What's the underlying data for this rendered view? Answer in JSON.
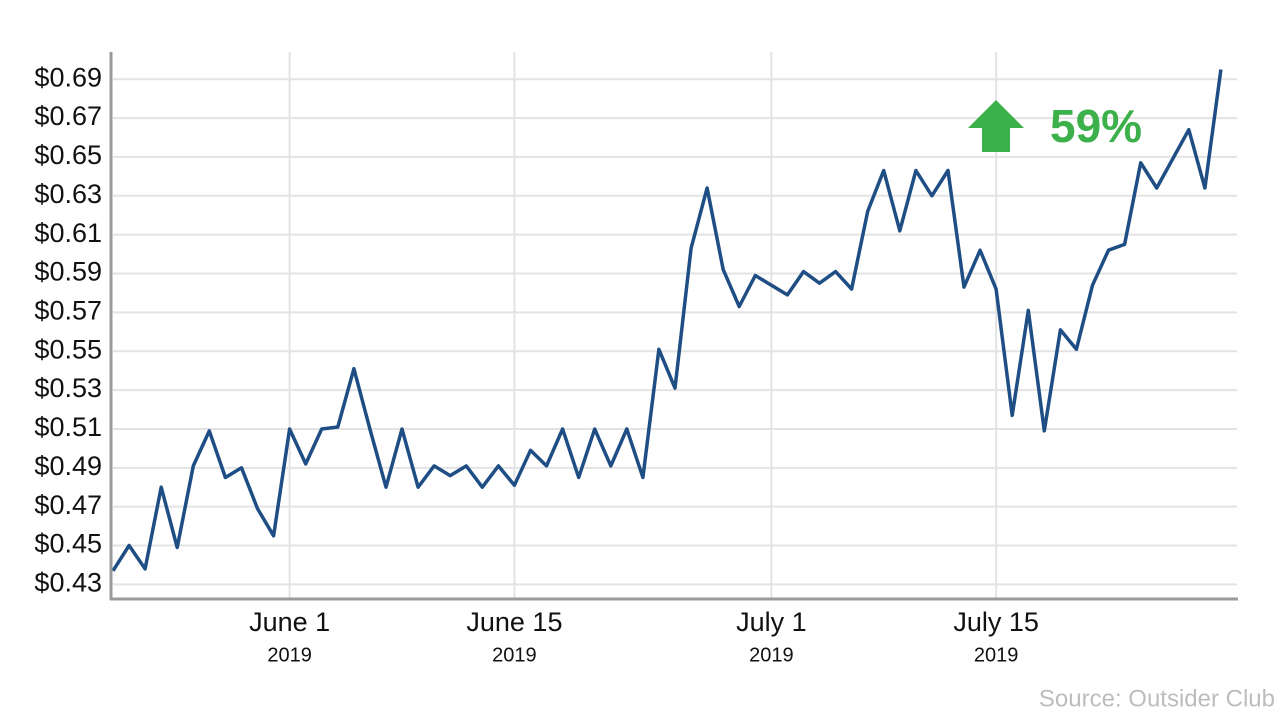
{
  "chart_data": {
    "type": "line",
    "annotation": "59%",
    "source": "Source: Outsider Club",
    "x": [
      "2019-05-21",
      "2019-05-22",
      "2019-05-23",
      "2019-05-24",
      "2019-05-25",
      "2019-05-26",
      "2019-05-27",
      "2019-05-28",
      "2019-05-29",
      "2019-05-30",
      "2019-05-31",
      "2019-06-01",
      "2019-06-02",
      "2019-06-03",
      "2019-06-04",
      "2019-06-05",
      "2019-06-06",
      "2019-06-07",
      "2019-06-08",
      "2019-06-09",
      "2019-06-10",
      "2019-06-11",
      "2019-06-12",
      "2019-06-13",
      "2019-06-14",
      "2019-06-15",
      "2019-06-16",
      "2019-06-17",
      "2019-06-18",
      "2019-06-19",
      "2019-06-20",
      "2019-06-21",
      "2019-06-22",
      "2019-06-23",
      "2019-06-24",
      "2019-06-25",
      "2019-06-26",
      "2019-06-27",
      "2019-06-28",
      "2019-06-29",
      "2019-06-30",
      "2019-07-02",
      "2019-07-03",
      "2019-07-04",
      "2019-07-05",
      "2019-07-06",
      "2019-07-07",
      "2019-07-08",
      "2019-07-09",
      "2019-07-10",
      "2019-07-11",
      "2019-07-12",
      "2019-07-13",
      "2019-07-14",
      "2019-07-15",
      "2019-07-16",
      "2019-07-17",
      "2019-07-18",
      "2019-07-19",
      "2019-07-20",
      "2019-07-21",
      "2019-07-22",
      "2019-07-23",
      "2019-07-24",
      "2019-07-25",
      "2019-07-27",
      "2019-07-28",
      "2019-07-29"
    ],
    "series": [
      {
        "color": "#1f4e85",
        "values": [
          0.437,
          0.45,
          0.438,
          0.48,
          0.449,
          0.491,
          0.509,
          0.485,
          0.49,
          0.469,
          0.455,
          0.51,
          0.492,
          0.51,
          0.511,
          0.541,
          0.51,
          0.48,
          0.51,
          0.48,
          0.491,
          0.486,
          0.491,
          0.48,
          0.491,
          0.481,
          0.499,
          0.491,
          0.51,
          0.485,
          0.51,
          0.491,
          0.51,
          0.485,
          0.551,
          0.531,
          0.603,
          0.634,
          0.592,
          0.573,
          0.589,
          0.579,
          0.591,
          0.585,
          0.591,
          0.582,
          0.622,
          0.643,
          0.612,
          0.643,
          0.63,
          0.643,
          0.583,
          0.602,
          0.582,
          0.517,
          0.571,
          0.509,
          0.561,
          0.551,
          0.584,
          0.602,
          0.605,
          0.647,
          0.634,
          0.664,
          0.634,
          0.695
        ]
      }
    ],
    "xlim": [
      "2019-05-21",
      "2019-07-30"
    ],
    "xticks": [
      {
        "value": "2019-06-01",
        "label": [
          "June 1",
          "2019"
        ]
      },
      {
        "value": "2019-06-15",
        "label": [
          "June 15",
          "2019"
        ]
      },
      {
        "value": "2019-07-01",
        "label": [
          "July 1",
          "2019"
        ]
      },
      {
        "value": "2019-07-15",
        "label": [
          "July 15",
          "2019"
        ]
      }
    ],
    "ylim": [
      0.423,
      0.704
    ],
    "yticks": [
      {
        "value": 0.43,
        "label": "$0.43"
      },
      {
        "value": 0.45,
        "label": "$0.45"
      },
      {
        "value": 0.47,
        "label": "$0.47"
      },
      {
        "value": 0.49,
        "label": "$0.49"
      },
      {
        "value": 0.51,
        "label": "$0.51"
      },
      {
        "value": 0.53,
        "label": "$0.53"
      },
      {
        "value": 0.55,
        "label": "$0.55"
      },
      {
        "value": 0.57,
        "label": "$0.57"
      },
      {
        "value": 0.59,
        "label": "$0.59"
      },
      {
        "value": 0.61,
        "label": "$0.61"
      },
      {
        "value": 0.63,
        "label": "$0.63"
      },
      {
        "value": 0.65,
        "label": "$0.65"
      },
      {
        "value": 0.67,
        "label": "$0.67"
      },
      {
        "value": 0.69,
        "label": "$0.69"
      }
    ],
    "grid": true,
    "annotation_color": "#3cb04a"
  }
}
